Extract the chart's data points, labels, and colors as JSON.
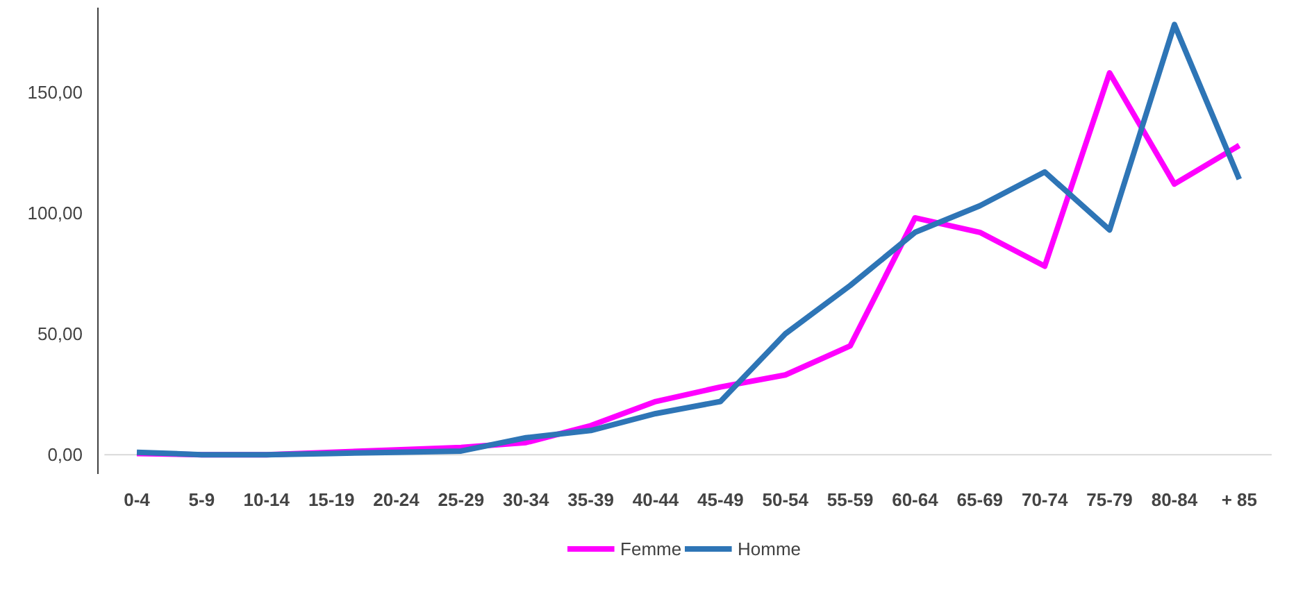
{
  "chart_data": {
    "type": "line",
    "categories": [
      "0-4",
      "5-9",
      "10-14",
      "15-19",
      "20-24",
      "25-29",
      "30-34",
      "35-39",
      "40-44",
      "45-49",
      "50-54",
      "55-59",
      "60-64",
      "65-69",
      "70-74",
      "75-79",
      "80-84",
      "+ 85"
    ],
    "series": [
      {
        "name": "Femme",
        "color": "#ff00ff",
        "values": [
          0.5,
          0,
          0,
          1,
          2,
          3,
          5,
          12,
          22,
          28,
          33,
          45,
          98,
          92,
          78,
          158,
          112,
          128
        ]
      },
      {
        "name": "Homme",
        "color": "#2e75b6",
        "values": [
          1,
          0,
          0,
          0.5,
          1,
          1.5,
          7,
          10,
          17,
          22,
          50,
          70,
          92,
          103,
          117,
          93,
          178,
          114
        ]
      }
    ],
    "ylim": [
      -8,
      185
    ],
    "yticks": [
      {
        "value": 0,
        "label": "0,00"
      },
      {
        "value": 50,
        "label": "50,00"
      },
      {
        "value": 100,
        "label": "100,00"
      },
      {
        "value": 150,
        "label": "150,00"
      }
    ],
    "grid": false,
    "legend": "bottom",
    "marker": "none",
    "line_style": "solid"
  }
}
